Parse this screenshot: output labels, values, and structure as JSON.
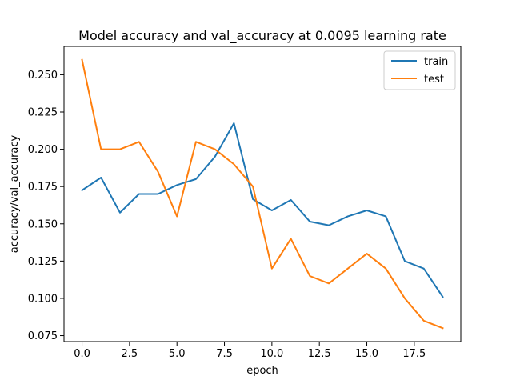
{
  "chart_data": {
    "type": "line",
    "title": "Model accuracy and val_accuracy at 0.0095 learning rate",
    "xlabel": "epoch",
    "ylabel": "accuracy/val_accuracy",
    "xlim": [
      -0.95,
      19.95
    ],
    "ylim": [
      0.071,
      0.269
    ],
    "xticks": [
      0,
      2.5,
      5,
      7.5,
      10,
      12.5,
      15,
      17.5
    ],
    "xtick_labels": [
      "0.0",
      "2.5",
      "5.0",
      "7.5",
      "10.0",
      "12.5",
      "15.0",
      "17.5"
    ],
    "yticks": [
      0.075,
      0.1,
      0.125,
      0.15,
      0.175,
      0.2,
      0.225,
      0.25
    ],
    "ytick_labels": [
      "0.075",
      "0.100",
      "0.125",
      "0.150",
      "0.175",
      "0.200",
      "0.225",
      "0.250"
    ],
    "legend_position": "top-right",
    "x": [
      0,
      1,
      2,
      3,
      4,
      5,
      6,
      7,
      8,
      9,
      10,
      11,
      12,
      13,
      14,
      15,
      16,
      17,
      18,
      19
    ],
    "series": [
      {
        "name": "train",
        "color": "#1f77b4",
        "values": [
          0.1725,
          0.181,
          0.1575,
          0.17,
          0.17,
          0.176,
          0.18,
          0.195,
          0.2175,
          0.1665,
          0.159,
          0.166,
          0.1515,
          0.149,
          0.155,
          0.159,
          0.155,
          0.125,
          0.12,
          0.101
        ]
      },
      {
        "name": "test",
        "color": "#ff7f0e",
        "values": [
          0.26,
          0.2,
          0.2,
          0.205,
          0.185,
          0.155,
          0.205,
          0.2,
          0.19,
          0.175,
          0.12,
          0.14,
          0.115,
          0.11,
          0.12,
          0.13,
          0.12,
          0.1,
          0.085,
          0.08
        ]
      }
    ]
  }
}
